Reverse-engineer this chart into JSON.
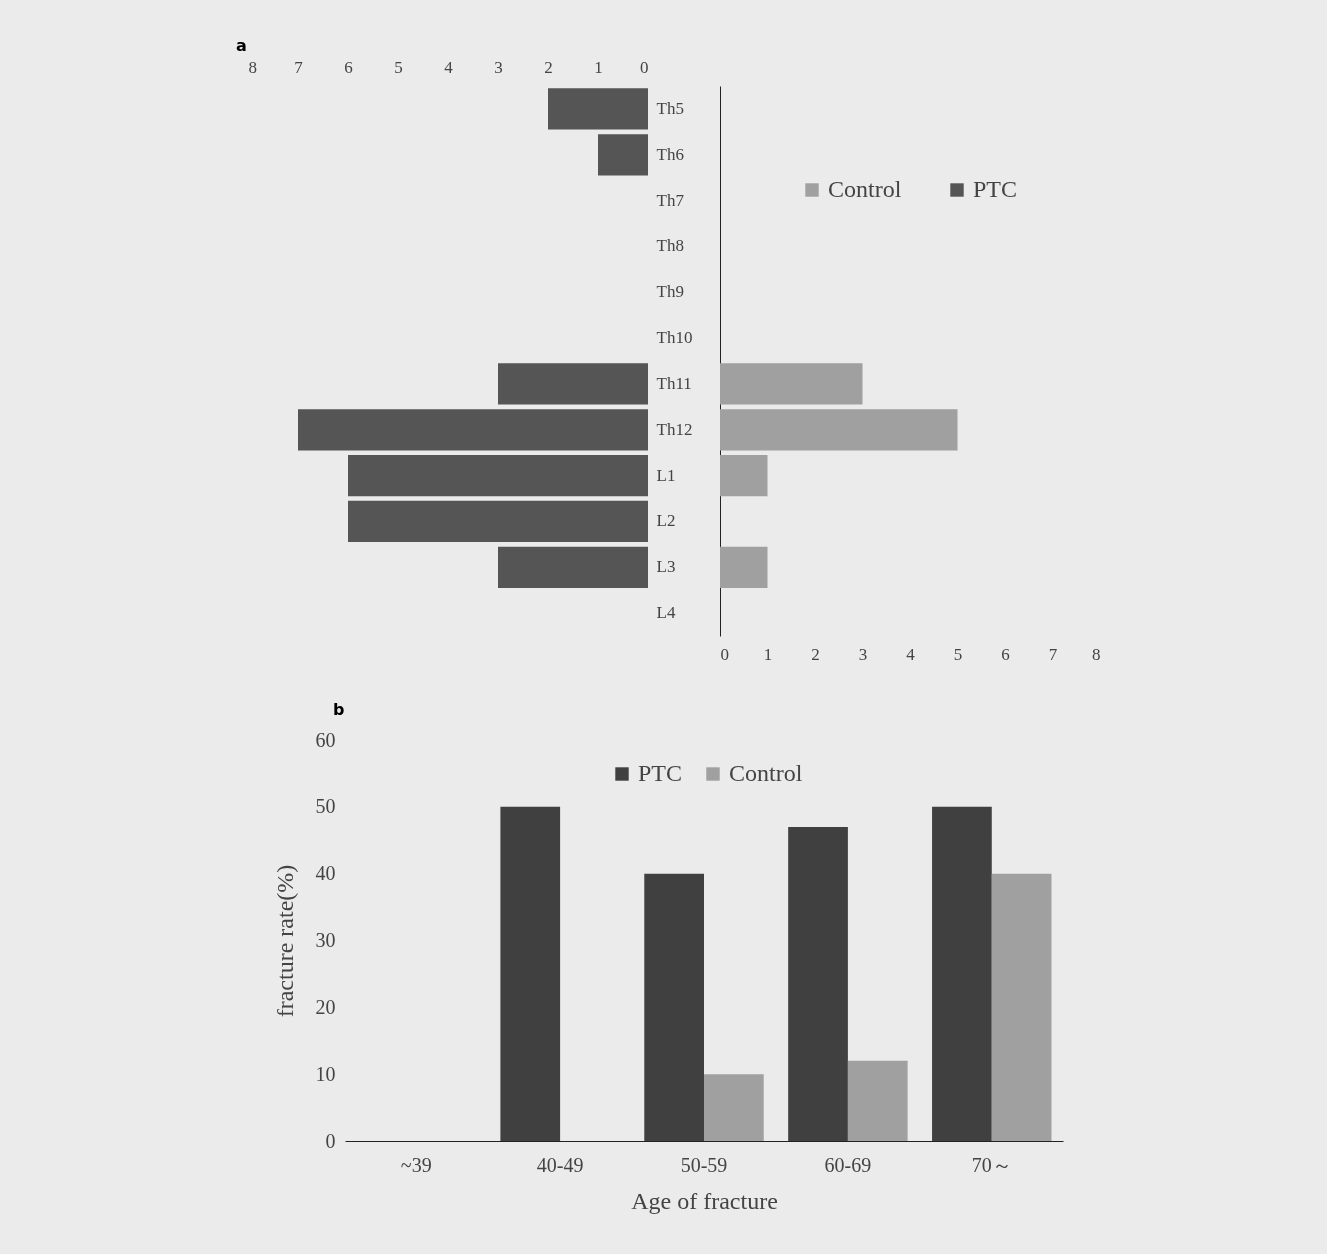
{
  "chart_data": [
    {
      "type": "bar",
      "title": "a",
      "orientation": "horizontal",
      "legend": "right",
      "categories": [
        "Th5",
        "Th6",
        "Th7",
        "Th8",
        "Th9",
        "Th10",
        "Th11",
        "Th12",
        "L1",
        "L2",
        "L3",
        "L4"
      ],
      "series": [
        {
          "name": "PTC",
          "color": "#555555",
          "values": [
            2,
            1,
            0,
            0,
            0,
            0,
            3,
            7,
            6,
            6,
            3,
            0
          ]
        }
      ],
      "xlim": [
        8,
        0
      ],
      "xticks": [
        8,
        7,
        6,
        5,
        4,
        3,
        2,
        1,
        0
      ]
    },
    {
      "type": "bar",
      "orientation": "horizontal",
      "categories": [
        null,
        null,
        null,
        null,
        null,
        null,
        null,
        null,
        null,
        null,
        null,
        null
      ],
      "series": [
        {
          "name": "Control",
          "color": "#a0a0a0",
          "values": [
            0,
            0,
            0,
            0,
            0,
            0,
            3,
            5,
            1,
            0,
            1,
            0
          ]
        }
      ],
      "xlim": [
        0,
        8
      ],
      "xticks": [
        0,
        1,
        2,
        3,
        4,
        5,
        6,
        7,
        8
      ],
      "tick_labels": "x",
      "legend": "top"
    },
    {
      "type": "bar",
      "title": "b",
      "categories": [
        "~39",
        "40-49",
        "50-59",
        "60-69",
        "70～"
      ],
      "series": [
        {
          "name": "PTC",
          "color": "#404040",
          "values": [
            0,
            50,
            40,
            47,
            50
          ]
        },
        {
          "name": "Control",
          "color": "#a0a0a0",
          "values": [
            0,
            0,
            10,
            12,
            40
          ]
        }
      ],
      "ylim": [
        0,
        60
      ],
      "yticks": [
        0,
        10,
        20,
        30,
        40,
        50,
        60
      ],
      "xlabel": "Age of fracture",
      "ylabel": "fracture rate(%)",
      "legend": "top"
    }
  ]
}
